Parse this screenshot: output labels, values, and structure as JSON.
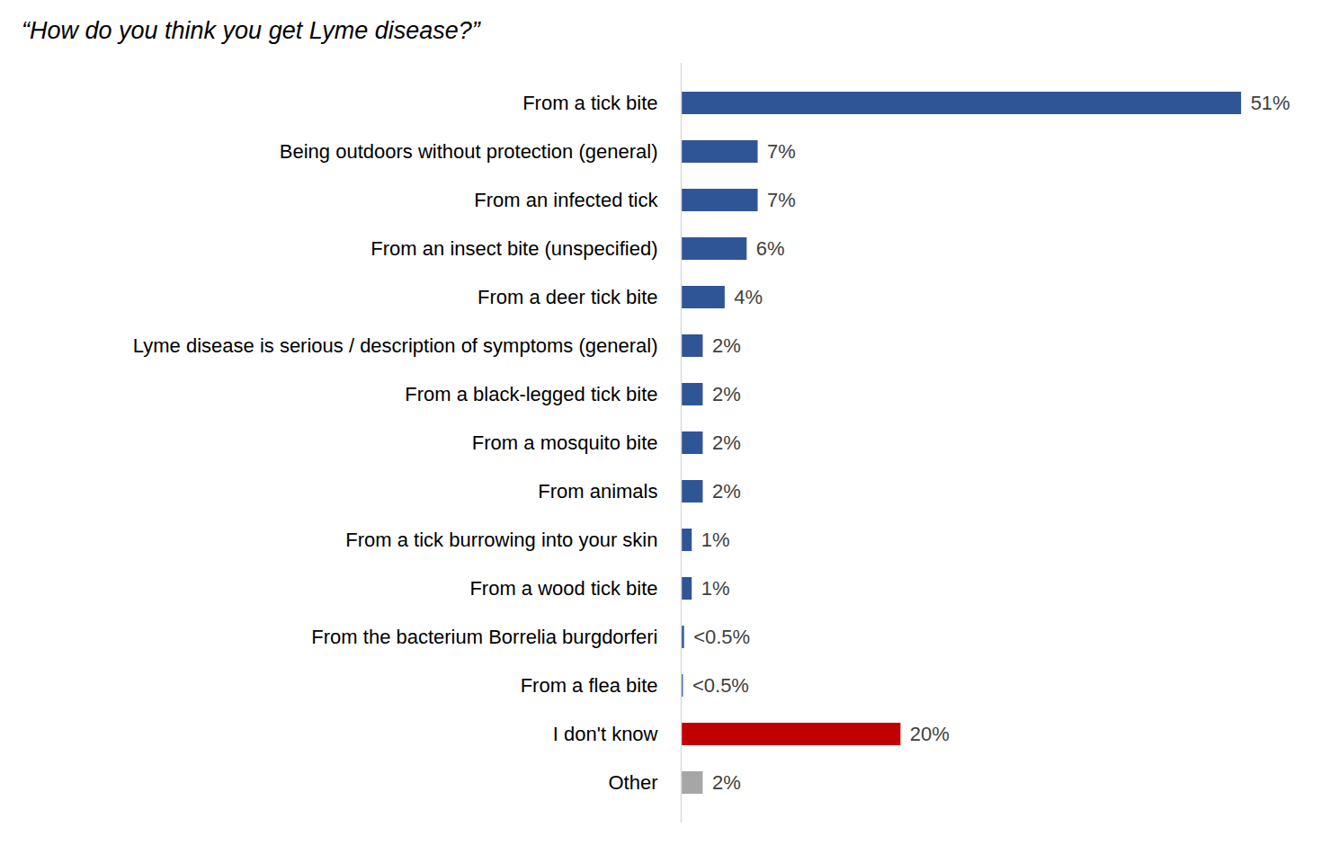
{
  "chart_data": {
    "type": "bar",
    "title": "“How do you think you get Lyme disease?”",
    "orientation": "horizontal",
    "categories": [
      "From a tick bite",
      "Being outdoors without protection (general)",
      "From an infected tick",
      "From an insect bite (unspecified)",
      "From a deer tick bite",
      "Lyme disease is serious / description of symptoms (general)",
      "From a black-legged tick bite",
      "From a mosquito bite",
      "From animals",
      "From a tick burrowing into your skin",
      "From a wood tick bite",
      "From the bacterium Borrelia burgdorferi",
      "From a flea bite",
      "I don't know",
      "Other"
    ],
    "values": [
      51,
      7,
      7,
      6,
      4,
      2,
      2,
      2,
      2,
      1,
      1,
      0.3,
      0.2,
      20,
      2
    ],
    "value_labels": [
      "51%",
      "7%",
      "7%",
      "6%",
      "4%",
      "2%",
      "2%",
      "2%",
      "2%",
      "1%",
      "1%",
      "<0.5%",
      "<0.5%",
      "20%",
      "2%"
    ],
    "colors": [
      "#2F5597",
      "#2F5597",
      "#2F5597",
      "#2F5597",
      "#2F5597",
      "#2F5597",
      "#2F5597",
      "#2F5597",
      "#2F5597",
      "#2F5597",
      "#2F5597",
      "#2F5597",
      "#2F5597",
      "#C00000",
      "#A6A6A6"
    ],
    "xlim": [
      0,
      55
    ],
    "data_labels": true,
    "tick_labels": "y",
    "grid": false
  }
}
